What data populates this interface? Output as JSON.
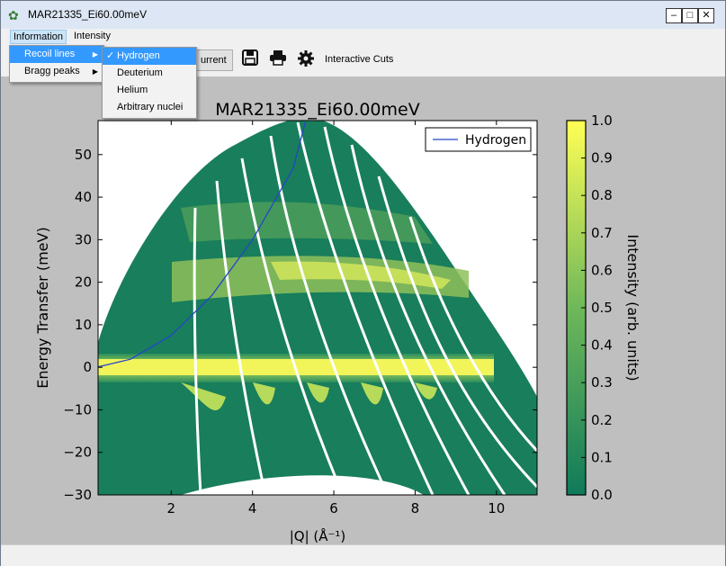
{
  "window": {
    "title": "MAR21335_Ei60.00meV",
    "app_icon": "mantid-icon",
    "min": "‒",
    "max": "□",
    "close": "✕"
  },
  "menubar": {
    "items": [
      {
        "label": "Information"
      },
      {
        "label": "Intensity"
      }
    ]
  },
  "information_menu": {
    "items": [
      {
        "label": "Recoil lines",
        "has_submenu": true
      },
      {
        "label": "Bragg peaks",
        "has_submenu": true
      }
    ]
  },
  "recoil_submenu": {
    "items": [
      {
        "label": "Hydrogen",
        "checked": true
      },
      {
        "label": "Deuterium",
        "checked": false
      },
      {
        "label": "Helium",
        "checked": false
      },
      {
        "label": "Arbitrary nuclei",
        "checked": false
      }
    ]
  },
  "toolbar": {
    "current_label": "urrent",
    "save_icon": "floppy-disk-icon",
    "print_icon": "printer-icon",
    "settings_icon": "gear-icon",
    "interactive_cuts_label": "Interactive Cuts"
  },
  "chart_data": {
    "type": "heatmap",
    "title": "MAR21335_Ei60.00meV",
    "xlabel": "|Q| (Å⁻¹)",
    "ylabel": "Energy Transfer (meV)",
    "xlim": [
      0.2,
      11.0
    ],
    "ylim": [
      -30,
      58
    ],
    "xticks": [
      "2",
      "4",
      "6",
      "8",
      "10"
    ],
    "yticks": [
      "50",
      "40",
      "30",
      "20",
      "10",
      "0",
      "−10",
      "−20",
      "−30"
    ],
    "xtick_values": [
      2,
      4,
      6,
      8,
      10
    ],
    "ytick_values": [
      50,
      40,
      30,
      20,
      10,
      0,
      -10,
      -20,
      -30
    ],
    "colorbar": {
      "label": "Intensity (arb. units)",
      "min": 0.0,
      "max": 1.0,
      "ticks": [
        "1.0",
        "0.9",
        "0.8",
        "0.7",
        "0.6",
        "0.5",
        "0.4",
        "0.3",
        "0.2",
        "0.1",
        "0.0"
      ],
      "tick_values": [
        1.0,
        0.9,
        0.8,
        0.7,
        0.6,
        0.5,
        0.4,
        0.3,
        0.2,
        0.1,
        0.0
      ],
      "low_color": "#0f7a5a",
      "high_color": "#ffff55"
    },
    "legend": {
      "position": "top-right",
      "entries": [
        {
          "name": "Hydrogen",
          "color": "#2646c8"
        }
      ]
    },
    "recoil_line": {
      "name": "Hydrogen",
      "color": "#2646c8",
      "points": [
        [
          0.2,
          0.1
        ],
        [
          1,
          1.9
        ],
        [
          2,
          7.5
        ],
        [
          3,
          16.9
        ],
        [
          4,
          30.0
        ],
        [
          5,
          46.8
        ],
        [
          5.3,
          57.7
        ]
      ]
    }
  }
}
